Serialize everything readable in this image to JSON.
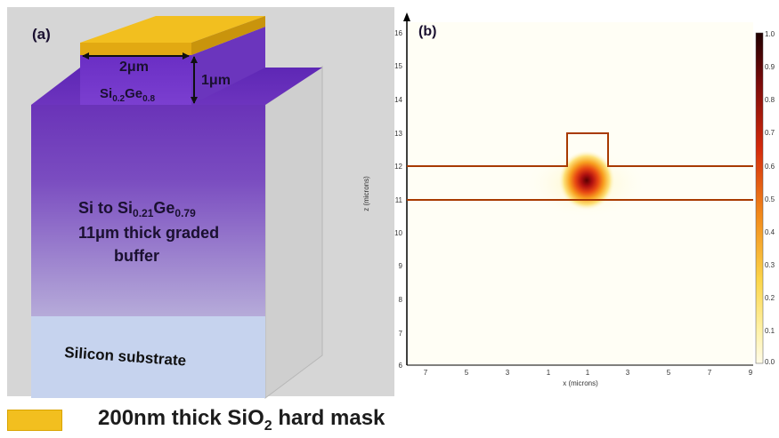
{
  "panel_a": {
    "label": "(a)",
    "width_dim": "2μm",
    "height_dim": "1μm",
    "ridge_material": {
      "main": "Si",
      "sub1": "0.2",
      "mid": "Ge",
      "sub2": "0.8"
    },
    "buffer": {
      "line1": {
        "a": "Si to Si",
        "sub1": "0.21",
        "b": "Ge",
        "sub2": "0.79"
      },
      "line2": "11μm thick graded",
      "line3": "buffer"
    },
    "substrate": "Silicon substrate"
  },
  "panel_b": {
    "label": "(b)",
    "x_label": "x (microns)",
    "z_label": "z (microns)",
    "z_ticks": [
      "16",
      "15",
      "14",
      "13",
      "12",
      "11",
      "10",
      "9",
      "8",
      "7",
      "6"
    ],
    "x_ticks": [
      "7",
      "5",
      "3",
      "1",
      "1",
      "3",
      "5",
      "7",
      "9"
    ],
    "colorbar_ticks": [
      "1.0",
      "0.9",
      "0.8",
      "0.7",
      "0.6",
      "0.5",
      "0.4",
      "0.3",
      "0.2",
      "0.1",
      "0.0"
    ]
  },
  "legend": {
    "text_pre": "200nm thick SiO",
    "text_sub": "2",
    "text_post": " hard mask",
    "color": "#f2bf1f"
  },
  "colors": {
    "purple_top": "#5a1fa8",
    "purple_bottom": "#b5a7d8",
    "substrate": "#c9d6ef",
    "side_grey": "#d4d4d4",
    "mode_line": "#a83a00"
  }
}
